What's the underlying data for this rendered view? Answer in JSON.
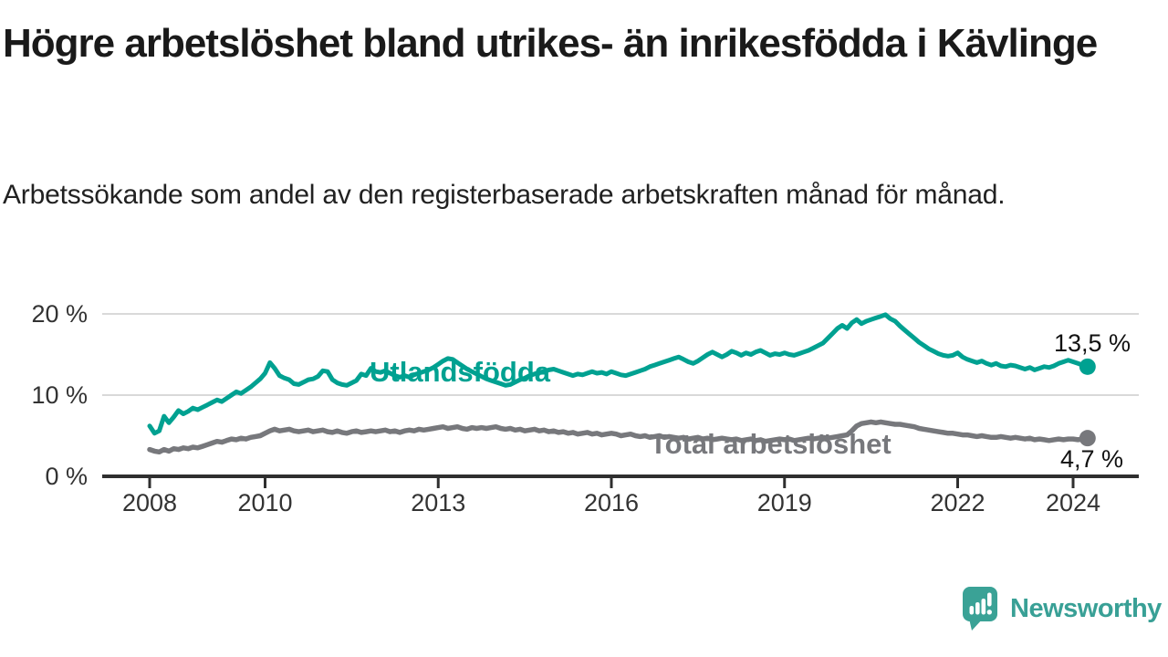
{
  "header": {
    "title": "Högre arbetslöshet bland utrikes- än inrikesfödda i Kävlinge",
    "subtitle": "Arbetssökande som andel av den registerbaserade arbetskraften månad för månad."
  },
  "footer": {
    "brand": "Newsworthy",
    "brand_color": "#3aa296"
  },
  "chart_data": {
    "type": "line",
    "unit": "%",
    "x_start": 2008.0,
    "x_step_months": 1,
    "x_ticks": [
      2008,
      2010,
      2013,
      2016,
      2019,
      2022,
      2024
    ],
    "x_tick_labels": [
      "2008",
      "2010",
      "2013",
      "2016",
      "2019",
      "2022",
      "2024"
    ],
    "y_ticks": [
      0,
      10,
      20
    ],
    "y_tick_labels": [
      "0 %",
      "10 %",
      "20 %"
    ],
    "ylim": [
      0,
      22
    ],
    "grid": "horizontal",
    "series": [
      {
        "name": "Utlandsfödda",
        "color": "#00a191",
        "end_label": "13,5 %",
        "end_value": 13.5,
        "values": [
          6.2,
          5.3,
          5.6,
          7.4,
          6.6,
          7.3,
          8.1,
          7.7,
          8.0,
          8.4,
          8.2,
          8.5,
          8.8,
          9.1,
          9.4,
          9.2,
          9.6,
          10.0,
          10.4,
          10.2,
          10.6,
          11.0,
          11.5,
          12.0,
          12.7,
          14.0,
          13.3,
          12.4,
          12.1,
          11.9,
          11.4,
          11.3,
          11.6,
          11.9,
          12.0,
          12.3,
          13.0,
          12.9,
          11.9,
          11.5,
          11.3,
          11.2,
          11.5,
          11.8,
          12.6,
          12.4,
          13.3,
          12.9,
          12.8,
          13.0,
          12.7,
          12.4,
          12.2,
          12.4,
          12.2,
          12.5,
          12.7,
          12.9,
          13.1,
          13.4,
          13.8,
          14.2,
          14.5,
          14.4,
          14.0,
          13.6,
          13.2,
          12.9,
          12.6,
          12.3,
          12.0,
          11.8,
          11.6,
          11.4,
          11.2,
          11.3,
          11.6,
          11.9,
          12.1,
          12.4,
          12.6,
          12.8,
          12.9,
          13.1,
          13.2,
          13.0,
          12.8,
          12.6,
          12.4,
          12.6,
          12.5,
          12.7,
          12.9,
          12.7,
          12.8,
          12.6,
          12.9,
          12.7,
          12.5,
          12.4,
          12.6,
          12.8,
          13.0,
          13.2,
          13.5,
          13.7,
          13.9,
          14.1,
          14.3,
          14.5,
          14.7,
          14.4,
          14.1,
          13.9,
          14.2,
          14.6,
          15.0,
          15.3,
          15.0,
          14.7,
          15.0,
          15.4,
          15.2,
          14.9,
          15.2,
          15.0,
          15.3,
          15.5,
          15.2,
          14.9,
          15.1,
          15.0,
          15.2,
          15.0,
          14.9,
          15.1,
          15.3,
          15.5,
          15.8,
          16.1,
          16.4,
          17.0,
          17.6,
          18.2,
          18.6,
          18.2,
          18.9,
          19.3,
          18.8,
          19.1,
          19.3,
          19.5,
          19.7,
          19.9,
          19.4,
          19.1,
          18.5,
          18.0,
          17.5,
          17.0,
          16.5,
          16.1,
          15.7,
          15.4,
          15.1,
          14.9,
          14.8,
          14.9,
          15.2,
          14.7,
          14.4,
          14.2,
          14.0,
          14.2,
          13.9,
          13.7,
          13.9,
          13.6,
          13.5,
          13.7,
          13.6,
          13.4,
          13.2,
          13.4,
          13.1,
          13.3,
          13.5,
          13.4,
          13.6,
          13.9,
          14.1,
          14.3,
          14.1,
          13.9,
          13.7,
          13.5
        ]
      },
      {
        "name": "Total arbetslöshet",
        "color": "#77787c",
        "end_label": "4,7 %",
        "end_value": 4.7,
        "values": [
          3.3,
          3.1,
          3.0,
          3.3,
          3.1,
          3.4,
          3.3,
          3.5,
          3.4,
          3.6,
          3.5,
          3.7,
          3.9,
          4.1,
          4.3,
          4.2,
          4.4,
          4.6,
          4.5,
          4.7,
          4.6,
          4.8,
          4.9,
          5.0,
          5.3,
          5.6,
          5.8,
          5.6,
          5.7,
          5.8,
          5.6,
          5.5,
          5.6,
          5.7,
          5.5,
          5.6,
          5.7,
          5.5,
          5.4,
          5.6,
          5.4,
          5.3,
          5.5,
          5.6,
          5.4,
          5.5,
          5.6,
          5.5,
          5.6,
          5.7,
          5.5,
          5.6,
          5.4,
          5.6,
          5.7,
          5.6,
          5.8,
          5.7,
          5.8,
          5.9,
          6.0,
          6.1,
          5.9,
          6.0,
          6.1,
          5.9,
          5.8,
          6.0,
          5.9,
          6.0,
          5.9,
          6.0,
          6.1,
          5.9,
          5.8,
          5.9,
          5.7,
          5.8,
          5.6,
          5.7,
          5.8,
          5.6,
          5.7,
          5.5,
          5.6,
          5.4,
          5.5,
          5.3,
          5.4,
          5.2,
          5.3,
          5.4,
          5.2,
          5.3,
          5.1,
          5.2,
          5.3,
          5.2,
          5.0,
          5.1,
          5.2,
          5.0,
          4.9,
          5.0,
          4.8,
          4.9,
          5.0,
          4.8,
          4.9,
          4.8,
          4.7,
          4.8,
          4.6,
          4.7,
          4.8,
          4.6,
          4.7,
          4.5,
          4.6,
          4.7,
          4.6,
          4.5,
          4.6,
          4.4,
          4.5,
          4.6,
          4.4,
          4.5,
          4.3,
          4.4,
          4.5,
          4.6,
          4.5,
          4.6,
          4.4,
          4.5,
          4.6,
          4.7,
          4.6,
          4.7,
          4.8,
          4.7,
          4.8,
          4.9,
          5.0,
          5.1,
          5.6,
          6.2,
          6.5,
          6.6,
          6.7,
          6.6,
          6.7,
          6.6,
          6.5,
          6.4,
          6.4,
          6.3,
          6.2,
          6.1,
          5.9,
          5.8,
          5.7,
          5.6,
          5.5,
          5.4,
          5.3,
          5.3,
          5.2,
          5.1,
          5.1,
          5.0,
          4.9,
          5.0,
          4.9,
          4.8,
          4.8,
          4.9,
          4.8,
          4.7,
          4.8,
          4.7,
          4.6,
          4.7,
          4.5,
          4.6,
          4.5,
          4.4,
          4.5,
          4.6,
          4.5,
          4.6,
          4.6,
          4.5,
          4.6,
          4.7
        ]
      }
    ]
  }
}
